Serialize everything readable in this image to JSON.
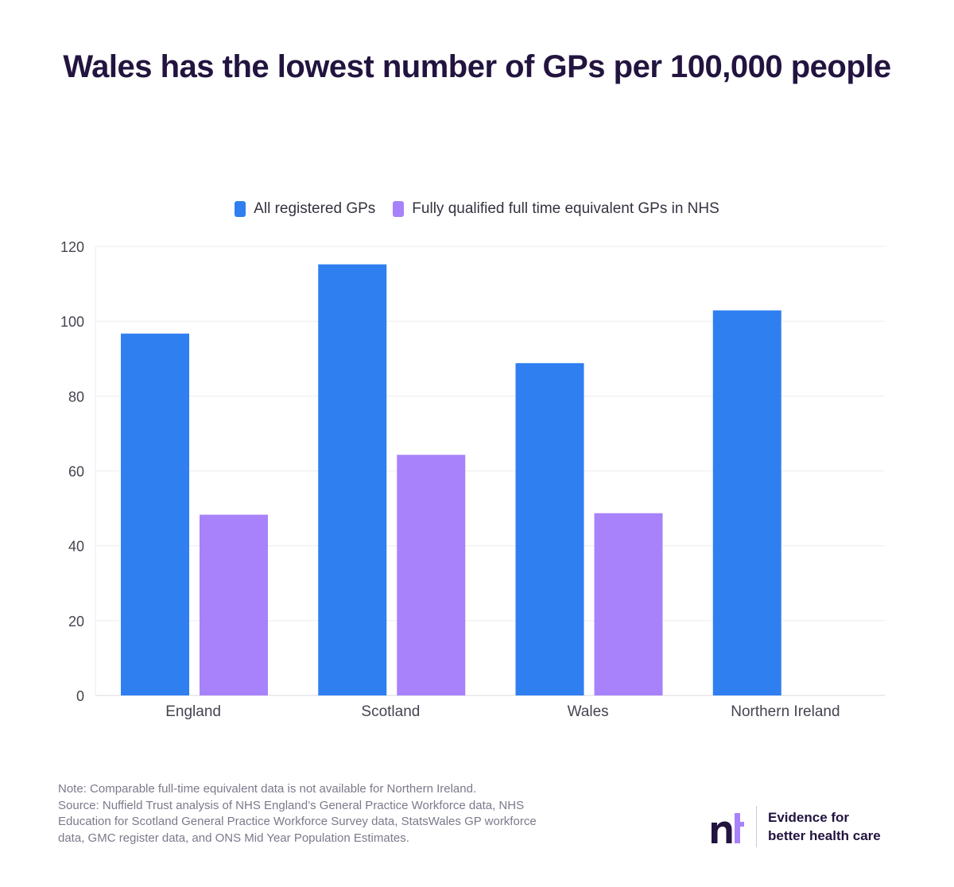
{
  "header": {
    "title": "Wales has the lowest number of GPs per 100,000 people"
  },
  "legend": [
    {
      "label": "All registered GPs",
      "color": "#2f7ff0"
    },
    {
      "label": "Fully qualified full time equivalent GPs in NHS",
      "color": "#a882fa"
    }
  ],
  "chart_data": {
    "type": "bar",
    "title": "Wales has the lowest number of GPs per 100,000 people",
    "categories": [
      "England",
      "Scotland",
      "Wales",
      "Northern Ireland"
    ],
    "series": [
      {
        "name": "All registered GPs",
        "color": "#2f7ff0",
        "values": [
          96.7,
          115.2,
          88.8,
          102.9
        ]
      },
      {
        "name": "Fully qualified full time equivalent GPs in NHS",
        "color": "#a882fa",
        "values": [
          48.3,
          64.3,
          48.7,
          null
        ]
      }
    ],
    "yticks": [
      0,
      20,
      40,
      60,
      80,
      100,
      120
    ],
    "ylim": [
      0,
      120
    ],
    "grid": true,
    "legend_position": "top-center"
  },
  "footer": {
    "note_lines": [
      "Note: Comparable full-time equivalent data is not available for Northern Ireland.",
      "Source: Nuffield Trust analysis of NHS England’s General Practice Workforce data, NHS",
      "Education for Scotland General Practice Workforce Survey data, StatsWales GP workforce",
      "data, GMC register data, and ONS Mid Year Population Estimates."
    ],
    "brand": {
      "logo_icon": "nt-logo-icon",
      "tagline_line1": "Evidence for",
      "tagline_line2": "better health care"
    }
  }
}
